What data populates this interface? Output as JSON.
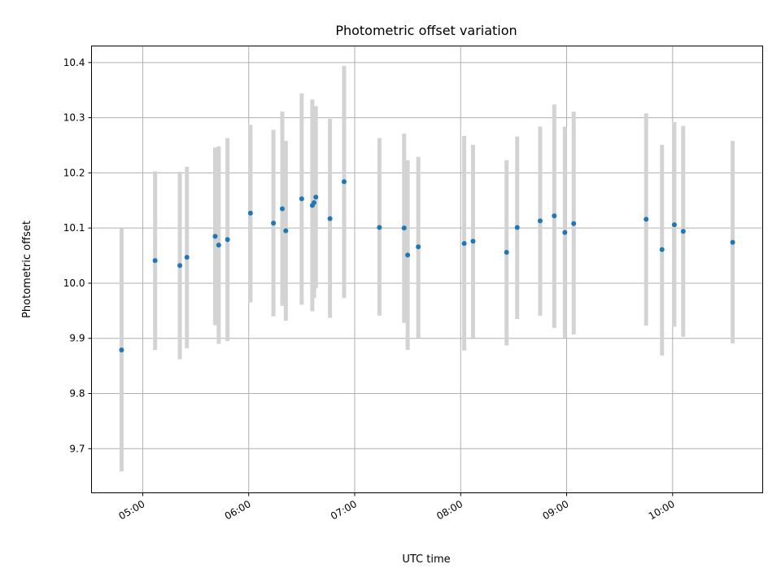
{
  "chart_data": {
    "type": "scatter",
    "title": "Photometric offset variation",
    "xlabel": "UTC time",
    "ylabel": "Photometric offset",
    "x_axis_type": "time",
    "xlim": [
      "04:31",
      "10:51"
    ],
    "ylim": [
      9.62,
      10.43
    ],
    "grid": true,
    "x_ticks": [
      "05:00",
      "06:00",
      "07:00",
      "08:00",
      "09:00",
      "10:00"
    ],
    "y_ticks": [
      9.7,
      9.8,
      9.9,
      10.0,
      10.1,
      10.2,
      10.3,
      10.4
    ],
    "point_color": "#1f77b4",
    "errorbar_color": "#d3d3d3",
    "series": [
      {
        "points": [
          {
            "x": "04:48",
            "y": 9.879,
            "low": 9.659,
            "high": 10.099
          },
          {
            "x": "05:07",
            "y": 10.041,
            "low": 9.879,
            "high": 10.203
          },
          {
            "x": "05:21",
            "y": 10.032,
            "low": 9.862,
            "high": 10.202
          },
          {
            "x": "05:25",
            "y": 10.047,
            "low": 9.882,
            "high": 10.211
          },
          {
            "x": "05:41",
            "y": 10.085,
            "low": 9.924,
            "high": 10.246
          },
          {
            "x": "05:43",
            "y": 10.069,
            "low": 9.89,
            "high": 10.248
          },
          {
            "x": "05:48",
            "y": 10.079,
            "low": 9.895,
            "high": 10.263
          },
          {
            "x": "06:01",
            "y": 10.127,
            "low": 9.965,
            "high": 10.287
          },
          {
            "x": "06:14",
            "y": 10.109,
            "low": 9.94,
            "high": 10.278
          },
          {
            "x": "06:19",
            "y": 10.135,
            "low": 9.959,
            "high": 10.311
          },
          {
            "x": "06:21",
            "y": 10.095,
            "low": 9.932,
            "high": 10.258
          },
          {
            "x": "06:30",
            "y": 10.153,
            "low": 9.961,
            "high": 10.344
          },
          {
            "x": "06:36",
            "y": 10.141,
            "low": 9.949,
            "high": 10.333
          },
          {
            "x": "06:37",
            "y": 10.146,
            "low": 9.973,
            "high": 10.32
          },
          {
            "x": "06:38",
            "y": 10.156,
            "low": 9.991,
            "high": 10.321
          },
          {
            "x": "06:46",
            "y": 10.117,
            "low": 9.937,
            "high": 10.298
          },
          {
            "x": "06:54",
            "y": 10.184,
            "low": 9.973,
            "high": 10.394
          },
          {
            "x": "07:14",
            "y": 10.101,
            "low": 9.941,
            "high": 10.263
          },
          {
            "x": "07:28",
            "y": 10.1,
            "low": 9.928,
            "high": 10.271
          },
          {
            "x": "07:30",
            "y": 10.051,
            "low": 9.879,
            "high": 10.223
          },
          {
            "x": "07:36",
            "y": 10.066,
            "low": 9.901,
            "high": 10.229
          },
          {
            "x": "08:02",
            "y": 10.072,
            "low": 9.878,
            "high": 10.267
          },
          {
            "x": "08:07",
            "y": 10.076,
            "low": 9.901,
            "high": 10.251
          },
          {
            "x": "08:26",
            "y": 10.056,
            "low": 9.887,
            "high": 10.223
          },
          {
            "x": "08:32",
            "y": 10.101,
            "low": 9.935,
            "high": 10.266
          },
          {
            "x": "08:45",
            "y": 10.113,
            "low": 9.941,
            "high": 10.284
          },
          {
            "x": "08:53",
            "y": 10.122,
            "low": 9.919,
            "high": 10.324
          },
          {
            "x": "08:59",
            "y": 10.092,
            "low": 9.901,
            "high": 10.284
          },
          {
            "x": "09:04",
            "y": 10.108,
            "low": 9.907,
            "high": 10.311
          },
          {
            "x": "09:45",
            "y": 10.116,
            "low": 9.923,
            "high": 10.308
          },
          {
            "x": "09:54",
            "y": 10.061,
            "low": 9.869,
            "high": 10.251
          },
          {
            "x": "10:01",
            "y": 10.106,
            "low": 9.921,
            "high": 10.292
          },
          {
            "x": "10:06",
            "y": 10.094,
            "low": 9.903,
            "high": 10.285
          },
          {
            "x": "10:34",
            "y": 10.074,
            "low": 9.891,
            "high": 10.258
          }
        ]
      }
    ]
  }
}
